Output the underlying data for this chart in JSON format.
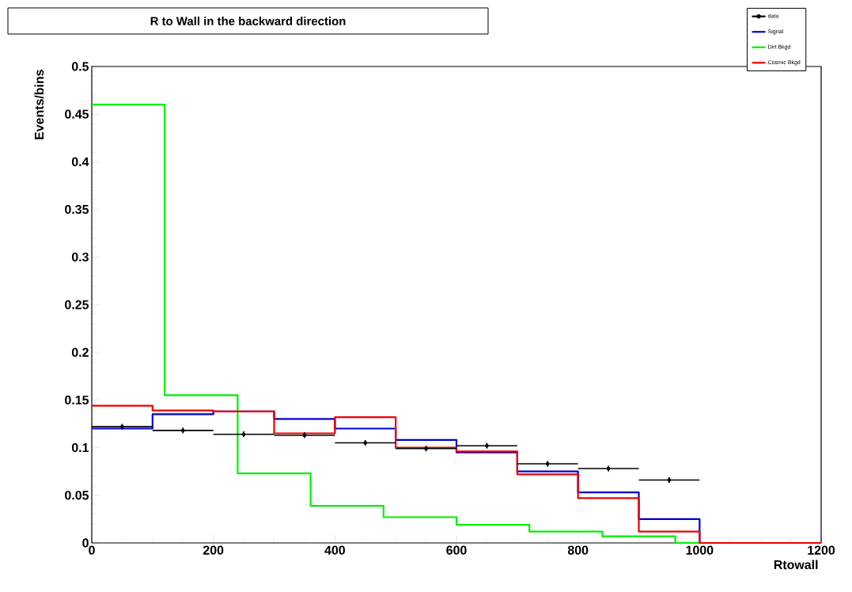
{
  "chart_data": {
    "type": "step",
    "title": "R to Wall in the backward direction",
    "xlabel": "Rtowall",
    "ylabel": "Events/bins",
    "xlim": [
      0,
      1200
    ],
    "ylim": [
      0,
      0.5
    ],
    "xticks": [
      0,
      200,
      400,
      600,
      800,
      1000,
      1200
    ],
    "yticks": [
      0,
      0.05,
      0.1,
      0.15,
      0.2,
      0.25,
      0.3,
      0.35,
      0.4,
      0.45,
      0.5
    ],
    "legend": "top right",
    "series": [
      {
        "name": "data",
        "type": "scatter",
        "color": "#000000",
        "marker": "circle",
        "x": [
          50,
          150,
          250,
          350,
          450,
          550,
          650,
          750,
          850,
          950
        ],
        "values": [
          0.122,
          0.118,
          0.114,
          0.113,
          0.105,
          0.099,
          0.102,
          0.083,
          0.078,
          0.066
        ],
        "xerrors": [
          50,
          50,
          50,
          50,
          50,
          50,
          50,
          50,
          50,
          50
        ],
        "errors": [
          0.003,
          0.003,
          0.003,
          0.003,
          0.003,
          0.003,
          0.003,
          0.003,
          0.003,
          0.003
        ]
      },
      {
        "name": "Signal",
        "color": "#0000cc",
        "x": [
          0,
          100,
          200,
          300,
          400,
          500,
          600,
          700,
          800,
          900,
          1000,
          1100,
          1200
        ],
        "values": [
          0.12,
          0.135,
          0.138,
          0.13,
          0.12,
          0.108,
          0.095,
          0.075,
          0.053,
          0.025,
          0,
          0,
          0
        ]
      },
      {
        "name": "Dirt Bkgd",
        "color": "#00ee00",
        "x": [
          0,
          120,
          240,
          360,
          480,
          600,
          720,
          840,
          960,
          1200
        ],
        "values": [
          0.46,
          0.155,
          0.073,
          0.039,
          0.027,
          0.019,
          0.012,
          0.007,
          0,
          0
        ]
      },
      {
        "name": "Cosmic Bkgd",
        "color": "#ee0000",
        "x": [
          0,
          100,
          200,
          300,
          400,
          500,
          600,
          700,
          800,
          900,
          1000,
          1100,
          1200
        ],
        "values": [
          0.144,
          0.139,
          0.138,
          0.115,
          0.132,
          0.1,
          0.096,
          0.072,
          0.047,
          0.012,
          0,
          0,
          0
        ]
      }
    ]
  }
}
